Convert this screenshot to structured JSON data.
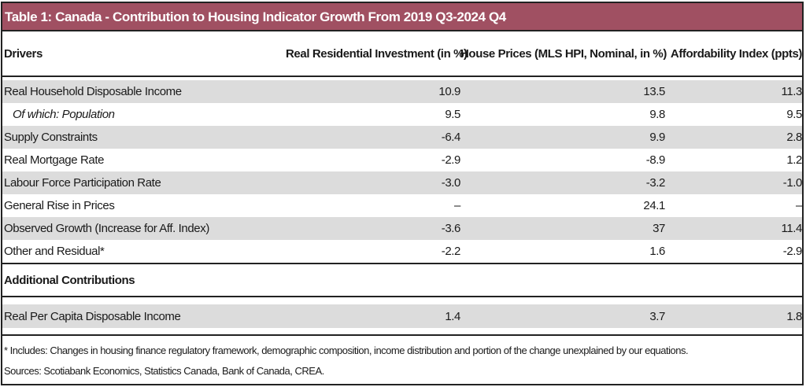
{
  "title": "Table 1: Canada - Contribution to Housing Indicator Growth From 2019 Q3-2024 Q4",
  "columns": [
    "Drivers",
    "Real Residential Investment (in %)",
    "House Prices (MLS HPI, Nominal, in %)",
    "Affordability Index (ppts)"
  ],
  "rows": [
    {
      "label": "Real Household Disposable Income",
      "v1": "10.9",
      "v2": "13.5",
      "v3": "11.3"
    },
    {
      "label": "Of which: Population",
      "v1": "9.5",
      "v2": "9.8",
      "v3": "9.5"
    },
    {
      "label": "Supply Constraints",
      "v1": "-6.4",
      "v2": "9.9",
      "v3": "2.8"
    },
    {
      "label": "Real Mortgage Rate",
      "v1": "-2.9",
      "v2": "-8.9",
      "v3": "1.2"
    },
    {
      "label": "Labour Force Participation Rate",
      "v1": "-3.0",
      "v2": "-3.2",
      "v3": "-1.0"
    },
    {
      "label": "General Rise in Prices",
      "v1": "–",
      "v2": "24.1",
      "v3": "–"
    },
    {
      "label": "Observed Growth (Increase for Aff. Index)",
      "v1": "-3.6",
      "v2": "37",
      "v3": "11.4"
    },
    {
      "label": "Other and Residual*",
      "v1": "-2.2",
      "v2": "1.6",
      "v3": "-2.9"
    }
  ],
  "additional": {
    "heading": "Additional Contributions",
    "row": {
      "label": "Real Per Capita Disposable Income",
      "v1": "1.4",
      "v2": "3.7",
      "v3": "1.8"
    }
  },
  "notes": {
    "footnote": "* Includes: Changes in housing finance regulatory framework, demographic composition, income distribution and portion of the change unexplained by our equations.",
    "sources": "Sources: Scotiabank Economics, Statistics Canada, Bank of Canada, CREA."
  },
  "colors": {
    "title_bg": "#a05062",
    "shade": "#dcdcdc"
  }
}
